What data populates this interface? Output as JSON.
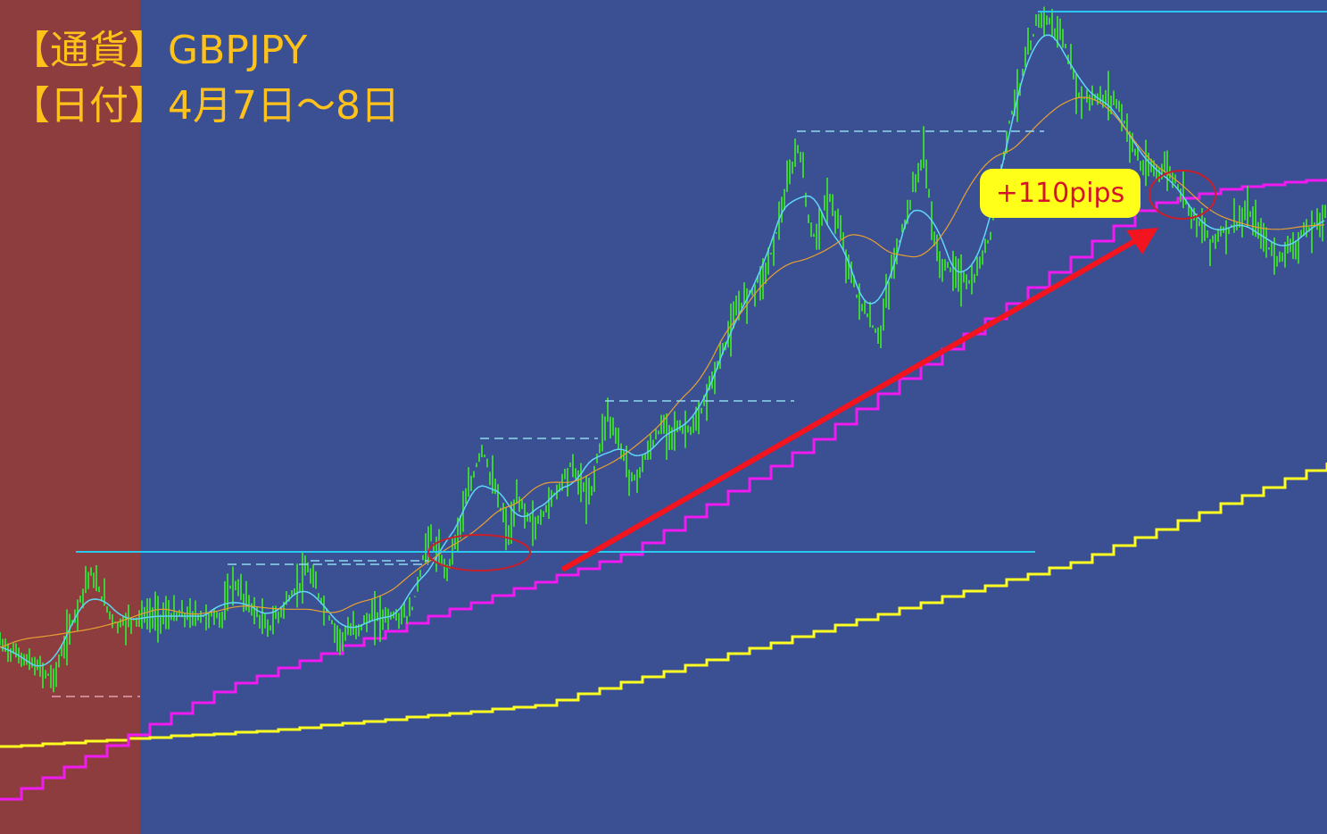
{
  "header": {
    "currency": "【通貨】GBPJPY",
    "date": "【日付】4月7日～8日"
  },
  "annotation": {
    "label": "+110pips"
  }
}
